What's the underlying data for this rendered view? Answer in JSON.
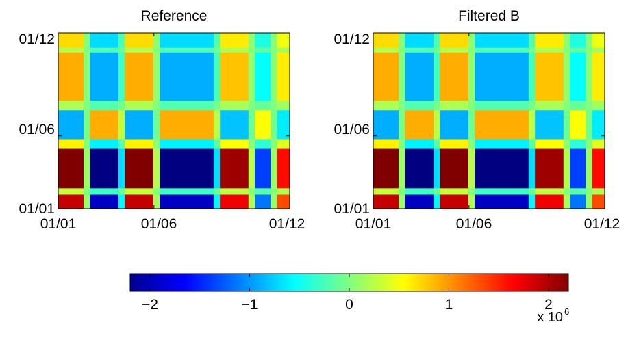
{
  "chart_data": [
    {
      "type": "heatmap",
      "title": "Reference",
      "xlabel": "",
      "ylabel": "",
      "x_tick_labels": [
        "01/01",
        "01/06",
        "01/12"
      ],
      "y_tick_labels": [
        "01/01",
        "01/06",
        "01/12"
      ],
      "grid": false,
      "pattern": {
        "x_block_edges_days": [
          0,
          40,
          50,
          95,
          105,
          150,
          160,
          245,
          255,
          300,
          310,
          335,
          345,
          365
        ],
        "y_block_edges_days": [
          0,
          30,
          43,
          125,
          145,
          205,
          225,
          325,
          335,
          365
        ],
        "x_block_values": [
          1,
          0.05,
          -1,
          -0.3,
          1,
          0.1,
          -1,
          -0.3,
          0.9,
          0.1,
          -0.6,
          0.05,
          0.7
        ],
        "y_block_values": [
          1.9,
          0.3,
          2.3,
          0.6,
          -0.9,
          0.2,
          0.9,
          0.2,
          0.7
        ]
      }
    },
    {
      "type": "heatmap",
      "title": "Filtered B",
      "xlabel": "",
      "ylabel": "",
      "x_tick_labels": [
        "01/01",
        "01/06",
        "01/12"
      ],
      "y_tick_labels": [
        "01/01",
        "01/06",
        "01/12"
      ],
      "grid": false,
      "pattern": {
        "x_block_edges_days": [
          0,
          40,
          50,
          95,
          105,
          150,
          160,
          245,
          255,
          300,
          310,
          335,
          345,
          365
        ],
        "y_block_edges_days": [
          0,
          30,
          43,
          125,
          145,
          205,
          225,
          325,
          335,
          365
        ],
        "x_block_values": [
          1,
          0.05,
          -1,
          -0.3,
          1,
          0.1,
          -1,
          -0.3,
          0.9,
          0.1,
          -0.6,
          0.05,
          0.7
        ],
        "y_block_values": [
          1.9,
          0.3,
          2.3,
          0.6,
          -0.9,
          0.2,
          0.9,
          0.2,
          0.7
        ]
      }
    }
  ],
  "colorbar": {
    "colormap": "jet",
    "range": [
      -2.2,
      2.2
    ],
    "tick_values": [
      -2,
      -1,
      0,
      1,
      2
    ],
    "tick_labels": [
      "−2",
      "−1",
      "0",
      "1",
      "2"
    ],
    "multiplier_label": "x 10",
    "multiplier_exponent": "6"
  }
}
